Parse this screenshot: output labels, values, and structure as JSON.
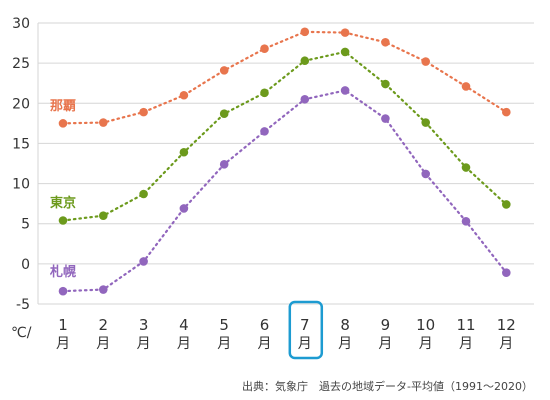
{
  "chart_data": {
    "type": "line",
    "categories": [
      "1",
      "2",
      "3",
      "4",
      "5",
      "6",
      "7",
      "8",
      "9",
      "10",
      "11",
      "12"
    ],
    "x_ticks": [
      {
        "num": "1",
        "unit": "月"
      },
      {
        "num": "2",
        "unit": "月"
      },
      {
        "num": "3",
        "unit": "月"
      },
      {
        "num": "4",
        "unit": "月"
      },
      {
        "num": "5",
        "unit": "月"
      },
      {
        "num": "6",
        "unit": "月"
      },
      {
        "num": "7",
        "unit": "月"
      },
      {
        "num": "8",
        "unit": "月"
      },
      {
        "num": "9",
        "unit": "月"
      },
      {
        "num": "10",
        "unit": "月"
      },
      {
        "num": "11",
        "unit": "月"
      },
      {
        "num": "12",
        "unit": "月"
      }
    ],
    "y_ticks": [
      "30",
      "25",
      "20",
      "15",
      "10",
      "5",
      "0",
      "-5"
    ],
    "ylim": [
      -5,
      30
    ],
    "ylabel": "℃/",
    "grid": true,
    "highlighted_category": "7",
    "series": [
      {
        "name": "那覇",
        "color": "#e8754d",
        "values": [
          17.5,
          17.6,
          18.9,
          21.0,
          24.1,
          26.8,
          28.9,
          28.8,
          27.6,
          25.2,
          22.1,
          18.9
        ]
      },
      {
        "name": "東京",
        "color": "#6c9a1c",
        "values": [
          5.4,
          6.0,
          8.7,
          13.9,
          18.7,
          21.3,
          25.3,
          26.4,
          22.4,
          17.6,
          12.0,
          7.4
        ]
      },
      {
        "name": "札幌",
        "color": "#9166bd",
        "values": [
          -3.4,
          -3.2,
          0.3,
          6.9,
          12.4,
          16.5,
          20.5,
          21.6,
          18.1,
          11.2,
          5.3,
          -1.1
        ]
      }
    ],
    "source": "出典：気象庁　過去の地域データ-平均値（1991～2020）"
  },
  "colors": {
    "grid": "#d6d6d6",
    "tick_text": "#333333",
    "highlight": "#1d9bd1",
    "source_text": "#444444"
  }
}
